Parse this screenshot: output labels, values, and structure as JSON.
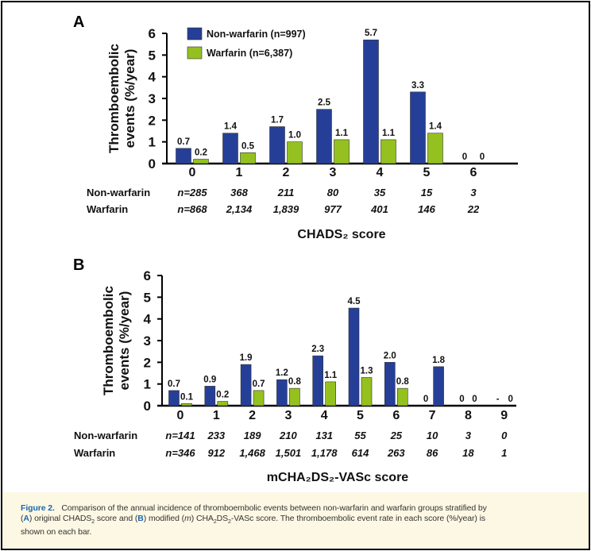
{
  "colors": {
    "non_warfarin": "#253f98",
    "warfarin": "#94c11f",
    "caption_bg": "#fdf8e4",
    "caption_accent": "#1b67b0"
  },
  "legend": [
    {
      "name": "Non-warfarin (n=997)",
      "color": "#253f98"
    },
    {
      "name": "Warfarin (n=6,387)",
      "color": "#94c11f"
    }
  ],
  "chart_data": [
    {
      "type": "bar",
      "panel": "A",
      "ylabel": "Thromboembolic events (%/year)",
      "xlabel": "CHADS₂ score",
      "ylim": [
        0,
        6
      ],
      "yticks": [
        "0",
        "1",
        "2",
        "3",
        "4",
        "5",
        "6"
      ],
      "categories": [
        "0",
        "1",
        "2",
        "3",
        "4",
        "5",
        "6"
      ],
      "legend_position": "top-left",
      "series": [
        {
          "name": "Non-warfarin (n=997)",
          "values": [
            0.7,
            1.4,
            1.7,
            2.5,
            5.7,
            3.3,
            0
          ],
          "labels": [
            "0.7",
            "1.4",
            "1.7",
            "2.5",
            "5.7",
            "3.3",
            "0"
          ]
        },
        {
          "name": "Warfarin (n=6,387)",
          "values": [
            0.2,
            0.5,
            1.0,
            1.1,
            1.1,
            1.4,
            0
          ],
          "labels": [
            "0.2",
            "0.5",
            "1.0",
            "1.1",
            "1.1",
            "1.4",
            "0"
          ]
        }
      ],
      "n_table": {
        "rows": [
          {
            "label": "Non-warfarin",
            "values": [
              "n=285",
              "368",
              "211",
              "80",
              "35",
              "15",
              "3"
            ]
          },
          {
            "label": "Warfarin",
            "values": [
              "n=868",
              "2,134",
              "1,839",
              "977",
              "401",
              "146",
              "22"
            ]
          }
        ]
      }
    },
    {
      "type": "bar",
      "panel": "B",
      "ylabel": "Thromboembolic events (%/year)",
      "xlabel": "mCHA₂DS₂-VASc score",
      "ylim": [
        0,
        6
      ],
      "yticks": [
        "0",
        "1",
        "2",
        "3",
        "4",
        "5",
        "6"
      ],
      "categories": [
        "0",
        "1",
        "2",
        "3",
        "4",
        "5",
        "6",
        "7",
        "8",
        "9"
      ],
      "series": [
        {
          "name": "Non-warfarin",
          "values": [
            0.7,
            0.9,
            1.9,
            1.2,
            2.3,
            4.5,
            2.0,
            0,
            0,
            null
          ],
          "labels": [
            "0.7",
            "0.9",
            "1.9",
            "1.2",
            "2.3",
            "4.5",
            "2.0",
            "0",
            "0",
            "-"
          ]
        },
        {
          "name": "Warfarin",
          "values": [
            0.1,
            0.2,
            0.7,
            0.8,
            1.1,
            1.3,
            0.8,
            1.8,
            0,
            0
          ],
          "labels": [
            "0.1",
            "0.2",
            "0.7",
            "0.8",
            "1.1",
            "1.3",
            "0.8",
            "1.8",
            "0",
            "0"
          ],
          "note": "score 7 bar is drawn in blue in the figure"
        }
      ],
      "n_table": {
        "rows": [
          {
            "label": "Non-warfarin",
            "values": [
              "n=141",
              "233",
              "189",
              "210",
              "131",
              "55",
              "25",
              "10",
              "3",
              "0"
            ]
          },
          {
            "label": "Warfarin",
            "values": [
              "n=346",
              "912",
              "1,468",
              "1,501",
              "1,178",
              "614",
              "263",
              "86",
              "18",
              "1"
            ]
          }
        ]
      }
    }
  ],
  "caption": {
    "figure_label": "Figure 2.",
    "line1": "Comparison of the annual incidence of thromboembolic events between non-warfarin and warfarin groups stratified by",
    "panel_a": "A",
    "seg_a": ") original CHADS",
    "sub2": "2",
    "seg_b": " score and (",
    "panel_b": "B",
    "seg_c": ") modified (",
    "m": "m",
    "seg_d": ") CHA",
    "seg_e": "DS",
    "seg_f": "-VASc score. The thromboembolic event rate in each score (%/year) is",
    "line3": "shown on each bar."
  }
}
